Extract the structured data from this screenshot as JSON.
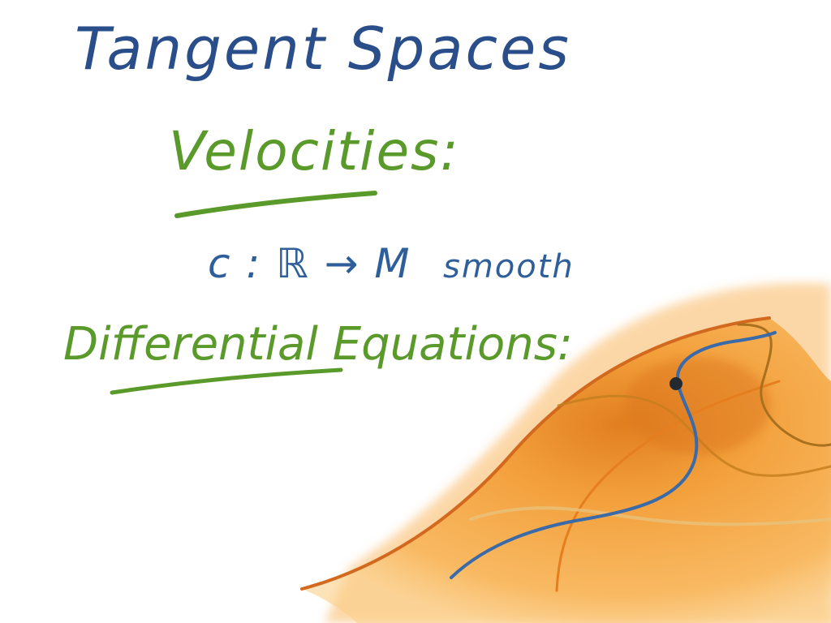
{
  "slide": {
    "title": "Tangent Spaces",
    "sections": [
      {
        "heading": "Velocities:",
        "definition": {
          "mapping": "c : ℝ → M",
          "qualifier": "smooth"
        }
      },
      {
        "heading": "Differential Equations:"
      }
    ]
  },
  "colors": {
    "title": "#2a4e8a",
    "heading": "#5a9a2a",
    "body": "#2f5f9a",
    "surface_fill": "#f7a43a",
    "surface_dark": "#d9781a",
    "surface_edge": "#d2691e",
    "curve": "#3b6aa8",
    "point": "#222a30"
  },
  "figure": {
    "description_icon": "manifold-surface-illustration"
  }
}
